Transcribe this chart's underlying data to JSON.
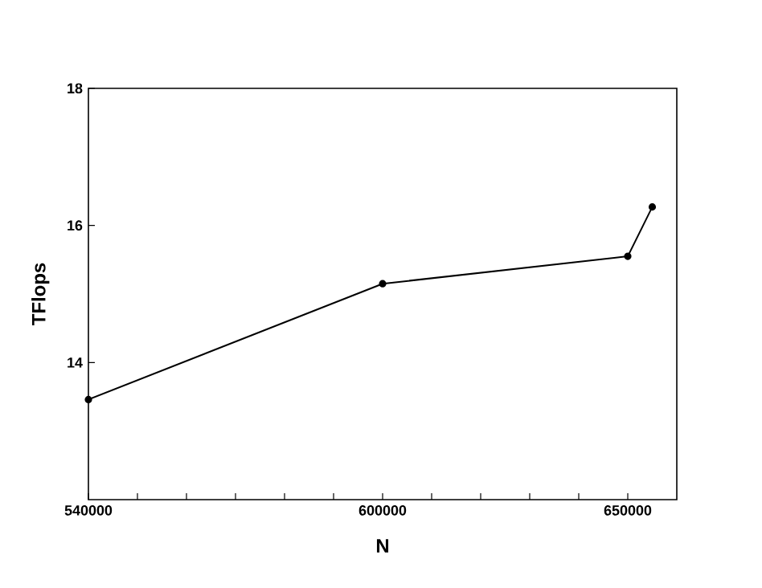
{
  "chart_data": {
    "type": "line",
    "xlabel": "N",
    "ylabel": "TFlops",
    "x": [
      540000,
      600000,
      650000,
      655000
    ],
    "series": [
      {
        "color": "#000000",
        "values": [
          13.46,
          15.15,
          15.55,
          16.27
        ]
      }
    ],
    "xlim": [
      540000,
      660000
    ],
    "xticks": [
      540000,
      {
        "value": 550000,
        "label": null
      },
      {
        "value": 560000,
        "label": null
      },
      {
        "value": 570000,
        "label": null
      },
      {
        "value": 580000,
        "label": null
      },
      {
        "value": 590000,
        "label": null
      },
      600000,
      {
        "value": 610000,
        "label": null
      },
      {
        "value": 620000,
        "label": null
      },
      {
        "value": 630000,
        "label": null
      },
      {
        "value": 640000,
        "label": null
      },
      650000
    ],
    "ylim": [
      12,
      18
    ],
    "yticks": [
      14,
      16,
      18
    ],
    "grid": false,
    "marker": "circle",
    "line_style": "solid"
  }
}
